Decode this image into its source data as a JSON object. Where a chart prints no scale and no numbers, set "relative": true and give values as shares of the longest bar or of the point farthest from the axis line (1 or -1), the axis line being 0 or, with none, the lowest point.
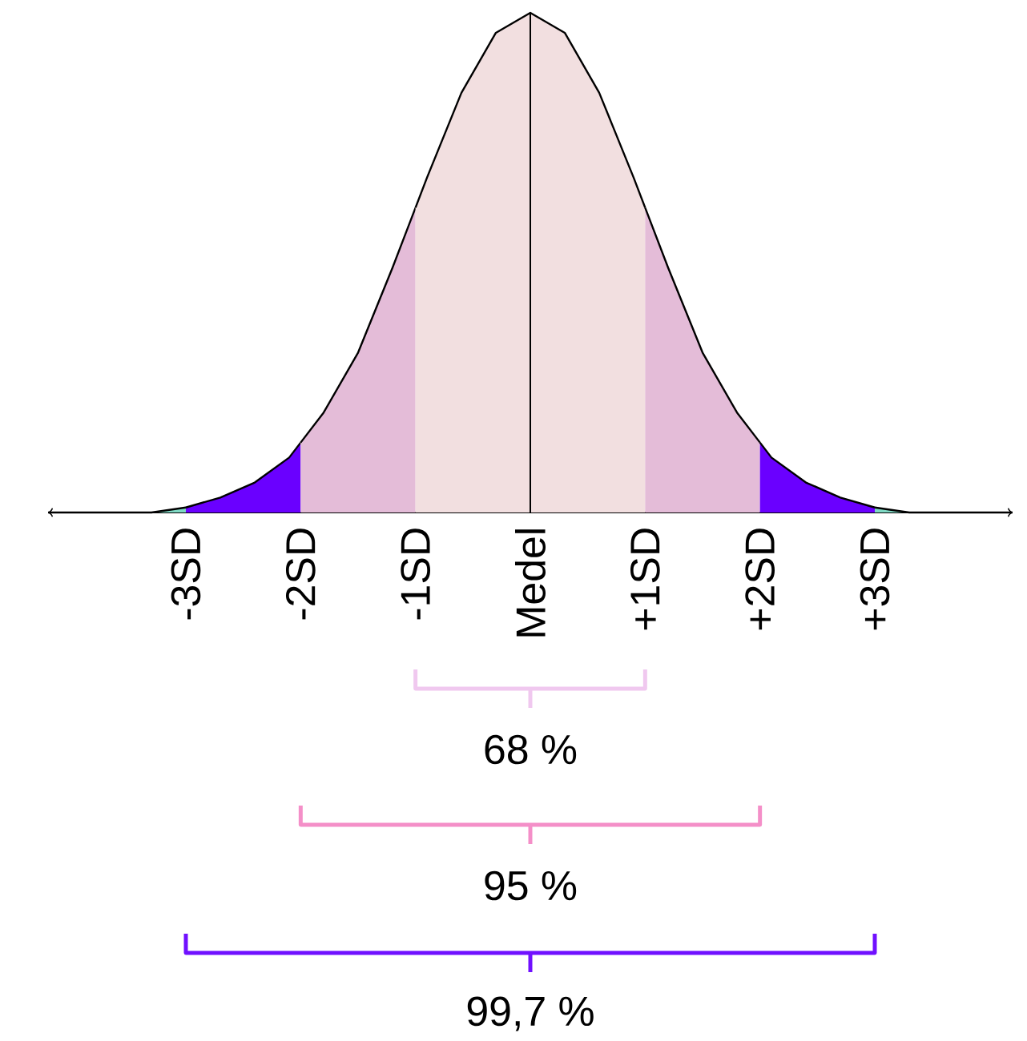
{
  "chart_data": {
    "type": "area",
    "relative": true,
    "tick_labels": "x",
    "xlim": [
      -4.2,
      4.2
    ],
    "xticks": [
      {
        "value": -3,
        "label": "-3SD"
      },
      {
        "value": -2,
        "label": "-2SD"
      },
      {
        "value": -1,
        "label": "-1SD"
      },
      {
        "value": 0,
        "label": "Medel"
      },
      {
        "value": 1,
        "label": "+1SD"
      },
      {
        "value": 2,
        "label": "+2SD"
      },
      {
        "value": 3,
        "label": "+3SD"
      }
    ],
    "series": [
      {
        "color": "#7fd9c4",
        "x": [
          -4.2,
          -3.9,
          -3.6,
          -3.3,
          -3
        ],
        "values": [
          0,
          0,
          0,
          0,
          0.01
        ]
      },
      {
        "color": "#6a00ff",
        "x": [
          -3,
          -2.7,
          -2.4,
          -2.1,
          -2
        ],
        "values": [
          0.01,
          0.03,
          0.06,
          0.11,
          0.14
        ]
      },
      {
        "color": "#e4bcd8",
        "x": [
          -2,
          -1.8,
          -1.5,
          -1.2,
          -1
        ],
        "values": [
          0.14,
          0.2,
          0.32,
          0.49,
          0.61
        ]
      },
      {
        "color": "#f2dfe0",
        "x": [
          -1,
          -0.9,
          -0.6,
          -0.3,
          0,
          0.3,
          0.6,
          0.9,
          1
        ],
        "values": [
          0.61,
          0.67,
          0.84,
          0.96,
          1,
          0.96,
          0.84,
          0.67,
          0.61
        ]
      },
      {
        "color": "#e4bcd8",
        "x": [
          1,
          1.2,
          1.5,
          1.8,
          2
        ],
        "values": [
          0.61,
          0.49,
          0.32,
          0.2,
          0.14
        ]
      },
      {
        "color": "#6a00ff",
        "x": [
          2,
          2.1,
          2.4,
          2.7,
          3
        ],
        "values": [
          0.14,
          0.11,
          0.06,
          0.03,
          0.01
        ]
      },
      {
        "color": "#7fd9c4",
        "x": [
          3,
          3.3,
          3.6,
          3.9,
          4.2
        ],
        "values": [
          0.01,
          0,
          0,
          0,
          0
        ]
      }
    ],
    "ref_lines": [
      {
        "axis": "x",
        "value": 0,
        "color": "#000000"
      }
    ],
    "annotations": [
      "68 %",
      "95 %",
      "99,7 %"
    ]
  }
}
